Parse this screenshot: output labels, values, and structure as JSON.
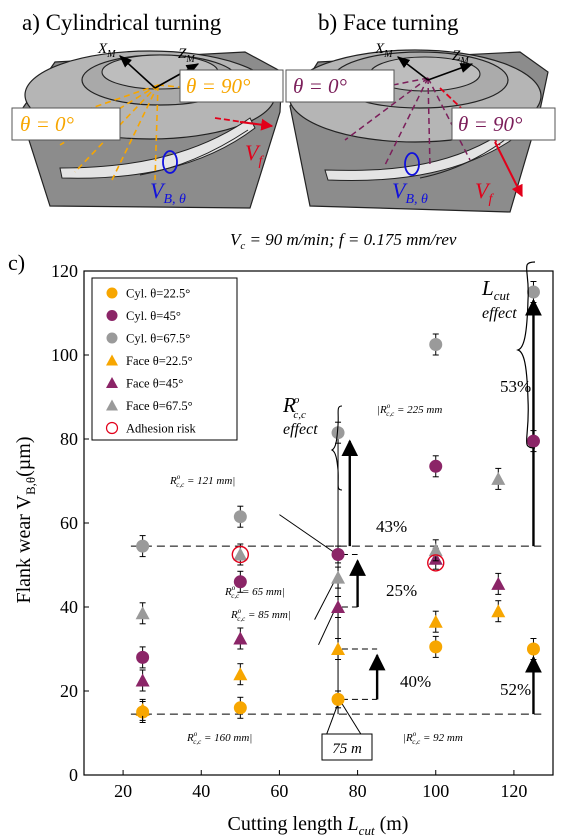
{
  "colors": {
    "orange": "#F7A600",
    "purple": "#8B2567",
    "grey": "#9A9A9A",
    "red": "#E2001A",
    "blue": "#1010DD",
    "dark_purple": "#7B1E5A",
    "workpiece_top": "#B8B8B8",
    "workpiece_side": "#8C8C8C"
  },
  "panel_a": {
    "title": "a)  Cylindrical turning",
    "xm": "X",
    "xm_sub": "M",
    "zm": "Z",
    "zm_sub": "M",
    "theta0": "θ = 0°",
    "theta90": "θ = 90°",
    "vf": "V",
    "vf_sub": "f",
    "vb": "V",
    "vb_sub": "B, θ"
  },
  "panel_b": {
    "title": "b)  Face turning",
    "xm": "X",
    "xm_sub": "M",
    "zm": "Z",
    "zm_sub": "M",
    "theta0": "θ = 0°",
    "theta90": "θ = 90°",
    "vf": "V",
    "vf_sub": "f",
    "vb": "V",
    "vb_sub": "B, θ"
  },
  "conditions": {
    "vc": "V",
    "vc_sub": "c",
    "text": " = 90 m/min; f = 0.175 mm/rev"
  },
  "panel_c_label": "c)",
  "chart_data": {
    "type": "scatter",
    "xlabel": "Cutting length ",
    "xlabel_var": "L",
    "xlabel_sub": "cut",
    "xlabel_unit": " (m)",
    "ylabel": "Flank wear V",
    "ylabel_sub": "B,θ",
    "ylabel_unit": "(µm)",
    "xlim": [
      10,
      130
    ],
    "ylim": [
      0,
      120
    ],
    "xticks": [
      20,
      40,
      60,
      80,
      100,
      120
    ],
    "yticks": [
      0,
      20,
      40,
      60,
      80,
      100,
      120
    ],
    "series": [
      {
        "name": "Cyl. θ=22.5°",
        "marker": "circle",
        "color": "#F7A600",
        "points": [
          [
            25,
            15,
            2.5
          ],
          [
            50,
            16,
            2.5
          ],
          [
            75,
            18,
            2
          ],
          [
            100,
            30.5,
            2.5
          ],
          [
            125,
            30,
            2.5
          ]
        ]
      },
      {
        "name": "Cyl. θ=45°",
        "marker": "circle",
        "color": "#8B2567",
        "points": [
          [
            25,
            28,
            2.5
          ],
          [
            50,
            46,
            2.5
          ],
          [
            75,
            52.5,
            2
          ],
          [
            100,
            73.5,
            2.5
          ],
          [
            125,
            79.5,
            2.5
          ]
        ]
      },
      {
        "name": "Cyl. θ=67.5°",
        "marker": "circle",
        "color": "#9A9A9A",
        "points": [
          [
            25,
            54.5,
            2.5
          ],
          [
            50,
            61.5,
            2.5
          ],
          [
            75,
            81.5,
            2.5
          ],
          [
            100,
            102.5,
            2.5
          ],
          [
            125,
            115,
            2.5
          ]
        ]
      },
      {
        "name": "Face θ=22.5°",
        "marker": "triangle",
        "color": "#F7A600",
        "points": [
          [
            25,
            15.5,
            2.5
          ],
          [
            50,
            24,
            2.5
          ],
          [
            75,
            30,
            2.5
          ],
          [
            100,
            36.5,
            2.5
          ],
          [
            116,
            39,
            2.5
          ]
        ]
      },
      {
        "name": "Face θ=45°",
        "marker": "triangle",
        "color": "#8B2567",
        "points": [
          [
            25,
            22.5,
            2.5
          ],
          [
            50,
            32.5,
            2.5
          ],
          [
            75,
            40,
            2.5
          ],
          [
            100,
            51.5,
            2.5
          ],
          [
            116,
            45.5,
            2.5
          ]
        ]
      },
      {
        "name": "Face θ=67.5°",
        "marker": "triangle",
        "color": "#9A9A9A",
        "points": [
          [
            25,
            38.5,
            2.5
          ],
          [
            50,
            52.5,
            2.5
          ],
          [
            75,
            47,
            2.5
          ],
          [
            100,
            53.5,
            2.5
          ],
          [
            116,
            70.5,
            2.5
          ]
        ]
      },
      {
        "name": "Adhesion risk",
        "marker": "open-circle",
        "color": "#E2001A",
        "points": [
          [
            50,
            52.5,
            0
          ],
          [
            100,
            50.5,
            0
          ]
        ]
      }
    ],
    "ref_lines": [
      54.5,
      14.5
    ],
    "annotations": {
      "lcut_label": "L",
      "lcut_sub": "cut",
      "lcut_effect": "effect",
      "rcc_label": "R",
      "rcc_sup": "o",
      "rcc_sub": "c,c",
      "rcc_effect": "effect",
      "pct_53": "53%",
      "pct_52": "52%",
      "pct_43": "43%",
      "pct_25": "25%",
      "pct_40": "40%",
      "r225": " = 225 mm",
      "r121": " = 121 mm",
      "r65": " = 65 mm",
      "r85": " = 85 mm",
      "r160": " = 160 mm",
      "r92": " = 92 mm",
      "box_75m": "75 m"
    }
  }
}
